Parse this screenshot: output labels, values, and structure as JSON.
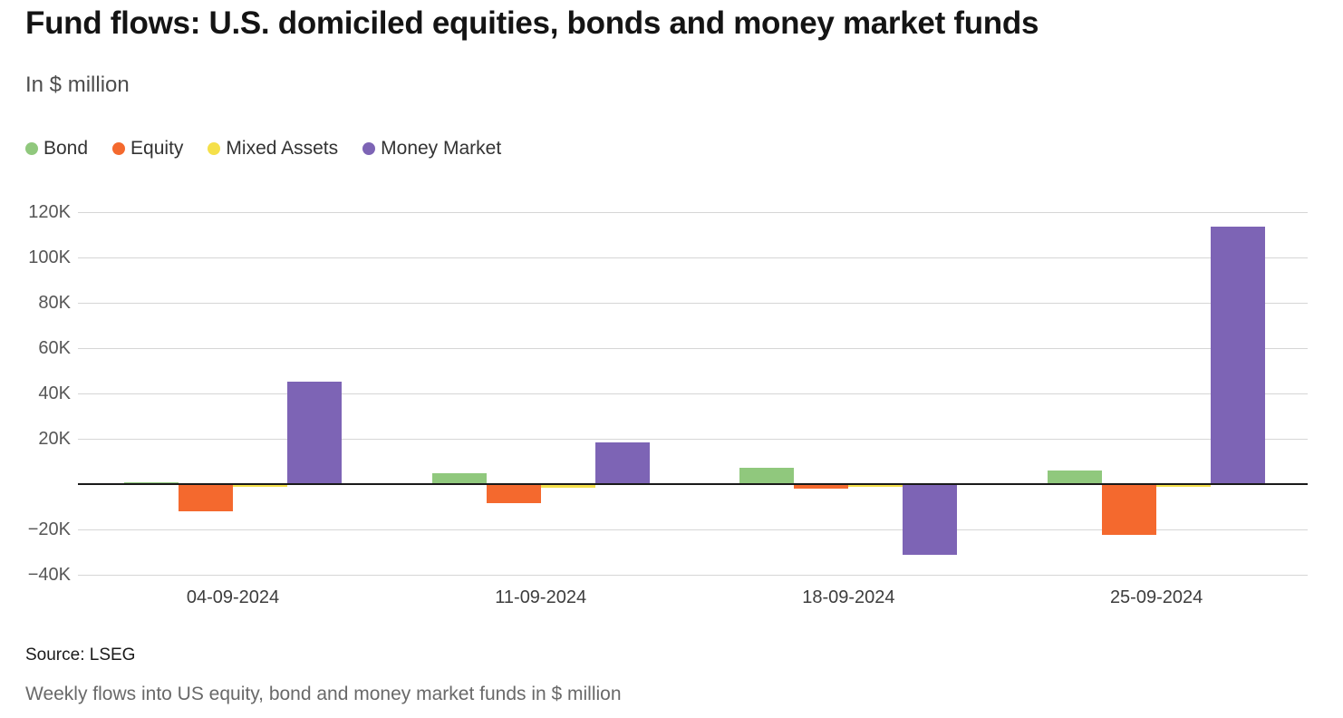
{
  "header": {
    "title": "Fund flows: U.S. domiciled equities, bonds and money market funds",
    "subtitle": "In $ million"
  },
  "legend": [
    {
      "label": "Bond",
      "color": "#90c87d"
    },
    {
      "label": "Equity",
      "color": "#f4692e"
    },
    {
      "label": "Mixed Assets",
      "color": "#f5e04a"
    },
    {
      "label": "Money Market",
      "color": "#7d64b5"
    }
  ],
  "footer": {
    "source": "Source: LSEG",
    "caption": "Weekly flows into US equity, bond and money market funds in $ million"
  },
  "chart_data": {
    "type": "bar",
    "title": "Fund flows: U.S. domiciled equities, bonds and money market funds",
    "ylabel": "In $ million",
    "categories": [
      "04-09-2024",
      "11-09-2024",
      "18-09-2024",
      "25-09-2024"
    ],
    "series": [
      {
        "name": "Bond",
        "color": "#90c87d",
        "values": [
          500,
          4400,
          6800,
          5600
        ]
      },
      {
        "name": "Equity",
        "color": "#f4692e",
        "values": [
          -11600,
          -8000,
          -1600,
          -22000
        ]
      },
      {
        "name": "Mixed Assets",
        "color": "#f5e04a",
        "values": [
          -800,
          -1200,
          -600,
          -600
        ]
      },
      {
        "name": "Money Market",
        "color": "#7d64b5",
        "values": [
          44800,
          18000,
          -30800,
          113200
        ]
      }
    ],
    "units": "$ million",
    "ylim": [
      -40000,
      120000
    ],
    "yticks": [
      120000,
      100000,
      80000,
      60000,
      40000,
      20000,
      -20000,
      -40000
    ],
    "ytick_labels": [
      "120K",
      "100K",
      "80K",
      "60K",
      "40K",
      "20K",
      "−20K",
      "−40K"
    ],
    "zero_line": true,
    "grid": true,
    "legend_position": "top",
    "colors": {
      "grid": "#d6d6d6",
      "zero_line": "#1a1a1a",
      "axis_text": "#565656"
    }
  }
}
